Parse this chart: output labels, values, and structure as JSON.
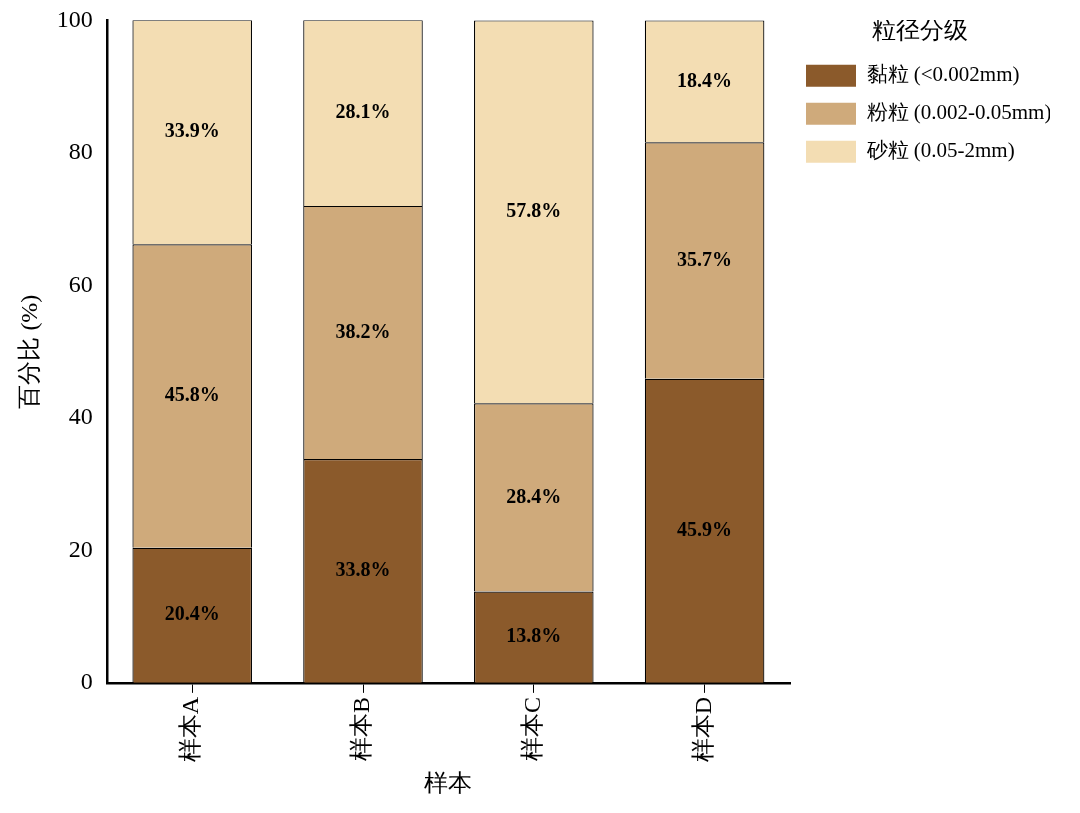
{
  "chart_data": {
    "type": "bar",
    "stacked": true,
    "xlabel": "样本",
    "ylabel": "百分比 (%)",
    "legend_title": "粒径分级",
    "legend": "right",
    "categories": [
      "样本A",
      "样本B",
      "样本C",
      "样本D"
    ],
    "series": [
      {
        "name": "黏粒 (<0.002mm)",
        "color": "#8b5a2b",
        "values": [
          20.4,
          33.8,
          13.8,
          45.9
        ],
        "value_labels": [
          "20.4%",
          "33.8%",
          "13.8%",
          "45.9%"
        ]
      },
      {
        "name": "粉粒 (0.002-0.05mm)",
        "color": "#cfaa7b",
        "values": [
          45.8,
          38.2,
          28.4,
          35.7
        ],
        "value_labels": [
          "45.8%",
          "38.2%",
          "28.4%",
          "35.7%"
        ]
      },
      {
        "name": "砂粒 (0.05-2mm)",
        "color": "#f3ddb3",
        "values": [
          33.9,
          28.1,
          57.8,
          18.4
        ],
        "value_labels": [
          "33.9%",
          "28.1%",
          "57.8%",
          "18.4%"
        ]
      }
    ],
    "ylim": [
      0,
      100
    ],
    "yticks": [
      0,
      20,
      40,
      60,
      80,
      100
    ],
    "grid": false
  }
}
